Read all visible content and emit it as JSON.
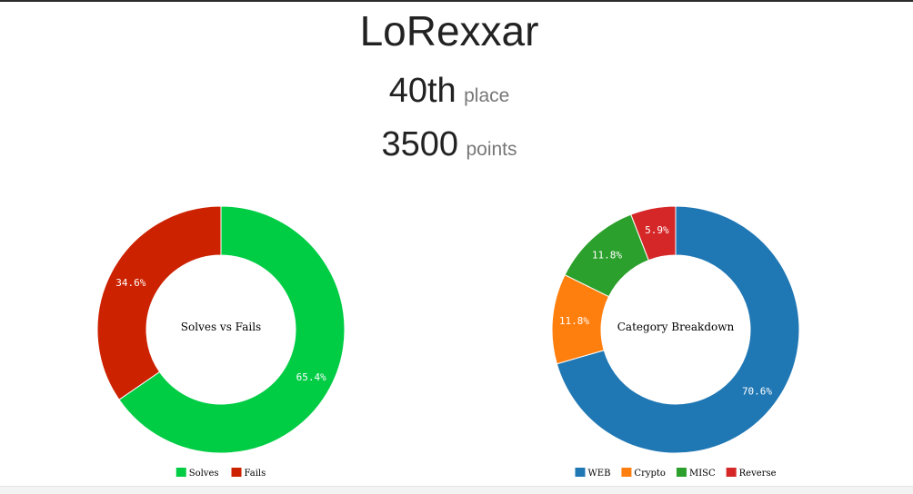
{
  "header": {
    "team_name": "LoRexxar",
    "place_value": "40th",
    "place_unit": "place",
    "points_value": "3500",
    "points_unit": "points"
  },
  "chart_data": [
    {
      "type": "pie",
      "title": "Solves vs Fails",
      "series": [
        {
          "name": "Solves",
          "value": 65.4,
          "label": "65.4%",
          "color": "#00cc44"
        },
        {
          "name": "Fails",
          "value": 34.6,
          "label": "34.6%",
          "color": "#cc2200"
        }
      ],
      "legend": "bottom"
    },
    {
      "type": "pie",
      "title": "Category Breakdown",
      "series": [
        {
          "name": "WEB",
          "value": 70.6,
          "label": "70.6%",
          "color": "#1f77b4"
        },
        {
          "name": "Crypto",
          "value": 11.8,
          "label": "11.8%",
          "color": "#ff7f0e"
        },
        {
          "name": "MISC",
          "value": 11.8,
          "label": "11.8%",
          "color": "#2ca02c"
        },
        {
          "name": "Reverse",
          "value": 5.9,
          "label": "5.9%",
          "color": "#d62728"
        }
      ],
      "legend": "bottom"
    }
  ]
}
